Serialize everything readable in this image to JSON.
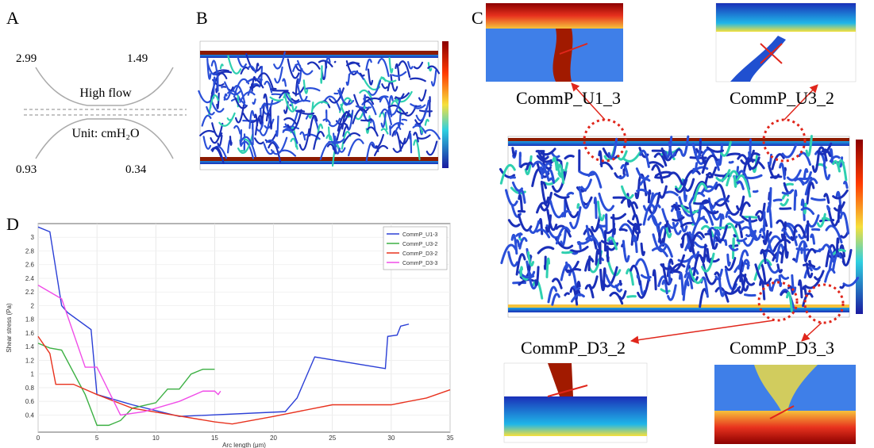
{
  "panels": {
    "a": {
      "label": "A",
      "pressures": [
        2.99,
        1.49,
        0.93,
        0.34
      ],
      "flow": "High flow",
      "unit": "Unit: cmH₂O"
    },
    "b": {
      "label": "B"
    },
    "c": {
      "label": "C",
      "callouts": [
        "CommP_U1_3",
        "CommP_U3_2",
        "CommP_D3_2",
        "CommP_D3_3"
      ]
    },
    "d": {
      "label": "D"
    }
  },
  "chart_data": {
    "type": "line",
    "x_label": "Arc length (μm)",
    "y_label": "Shear stress (Pa)",
    "xlim": [
      0,
      35
    ],
    "ylim": [
      0.15,
      3.2
    ],
    "xticks": [
      0,
      5,
      10,
      15,
      20,
      25,
      30,
      35
    ],
    "yticks": [
      0.4,
      0.6,
      0.8,
      1,
      1.2,
      1.4,
      1.6,
      1.8,
      2,
      2.2,
      2.4,
      2.6,
      2.8,
      3
    ],
    "grid": true,
    "legend": "upper right",
    "series": [
      {
        "name": "CommP_U1-3",
        "color": "#2b3fd6",
        "x": [
          0,
          1,
          2,
          2.5,
          4.5,
          5,
          8,
          12,
          21,
          22,
          23.5,
          29.5,
          29.7,
          30.5,
          30.8,
          31.5
        ],
        "values": [
          3.15,
          3.08,
          2.0,
          1.9,
          1.65,
          0.7,
          0.55,
          0.38,
          0.45,
          0.65,
          1.25,
          1.08,
          1.55,
          1.57,
          1.7,
          1.73
        ]
      },
      {
        "name": "CommP_U3-2",
        "color": "#3cb043",
        "x": [
          0,
          1,
          2,
          4,
          5,
          6,
          7,
          8,
          10,
          11,
          12,
          13,
          14,
          15
        ],
        "values": [
          1.45,
          1.38,
          1.35,
          0.7,
          0.25,
          0.25,
          0.32,
          0.5,
          0.58,
          0.78,
          0.78,
          1.0,
          1.07,
          1.07
        ]
      },
      {
        "name": "CommP_D3-2",
        "color": "#e8321e",
        "x": [
          0,
          1,
          1.5,
          3,
          5,
          8,
          15,
          16.5,
          20,
          25,
          30,
          33,
          35
        ],
        "values": [
          1.55,
          1.3,
          0.85,
          0.85,
          0.7,
          0.5,
          0.3,
          0.27,
          0.38,
          0.55,
          0.55,
          0.65,
          0.77
        ]
      },
      {
        "name": "CommP_D3-3",
        "color": "#f04ce8",
        "x": [
          0,
          2,
          4,
          5,
          7,
          9,
          12,
          14,
          15,
          15.3,
          15.5
        ],
        "values": [
          2.3,
          2.1,
          1.1,
          1.1,
          0.4,
          0.45,
          0.6,
          0.75,
          0.75,
          0.7,
          0.75
        ]
      }
    ]
  }
}
